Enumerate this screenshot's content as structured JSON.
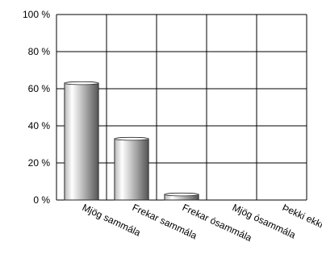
{
  "chart_data": {
    "type": "bar",
    "title": "",
    "xlabel": "",
    "ylabel": "",
    "categories": [
      "Mjög sammála",
      "Frekar sammála",
      "Frekar ósammála",
      "Mjög ósammála",
      "Þekki ekki"
    ],
    "values": [
      63,
      33,
      3,
      0,
      0
    ],
    "ylim": [
      0,
      100
    ],
    "yticks": [
      0,
      20,
      40,
      60,
      80,
      100
    ],
    "ytick_labels": [
      "0 %",
      "20 %",
      "40 %",
      "60 %",
      "80 %",
      "100 %"
    ],
    "grid": true,
    "bar_style": "3d-cylinder-gradient",
    "colors": {
      "bar_light": "#ffffff",
      "bar_mid": "#b8b8b8",
      "bar_dark": "#555555",
      "bar_edge": "#2b2b2b",
      "grid": "#000000",
      "axis": "#000000"
    }
  }
}
